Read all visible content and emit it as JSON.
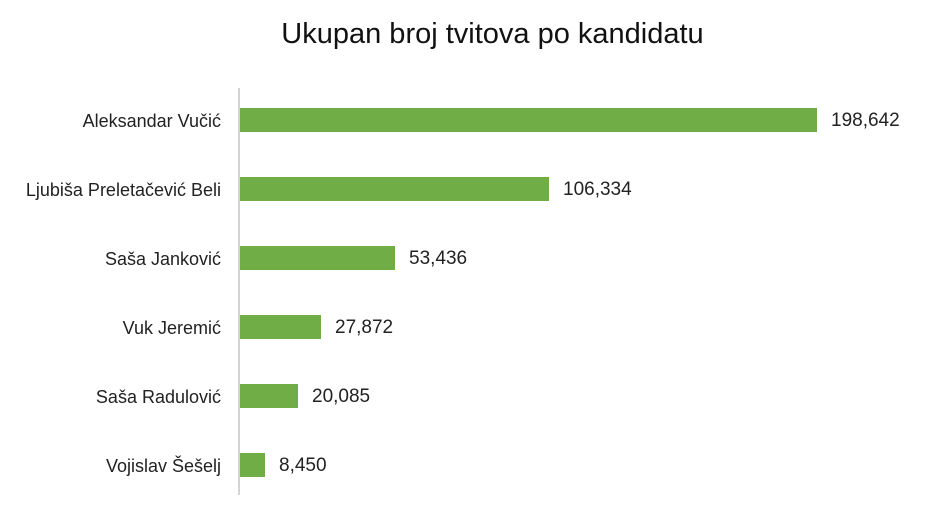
{
  "chart_data": {
    "type": "bar",
    "orientation": "horizontal",
    "title": "Ukupan broj tvitova po kandidatu",
    "xlabel": "",
    "ylabel": "",
    "categories": [
      "Aleksandar Vučić",
      "Ljubiša Preletačević Beli",
      "Saša Janković",
      "Vuk Jeremić",
      "Saša Radulović",
      "Vojislav Šešelj"
    ],
    "values": [
      198642,
      106334,
      53436,
      27872,
      20085,
      8450
    ],
    "value_labels": [
      "198,642",
      "106,334",
      "53,436",
      "27,872",
      "20,085",
      "8,450"
    ],
    "bar_color": "#70ad47",
    "grid": false,
    "legend": null
  },
  "rows": [
    {
      "label": "Aleksandar Vučić",
      "value": "198,642"
    },
    {
      "label": "Ljubiša Preletačević Beli",
      "value": "106,334"
    },
    {
      "label": "Saša Janković",
      "value": "53,436"
    },
    {
      "label": "Vuk Jeremić",
      "value": "27,872"
    },
    {
      "label": "Saša Radulović",
      "value": "20,085"
    },
    {
      "label": "Vojislav Šešelj",
      "value": "8,450"
    }
  ]
}
